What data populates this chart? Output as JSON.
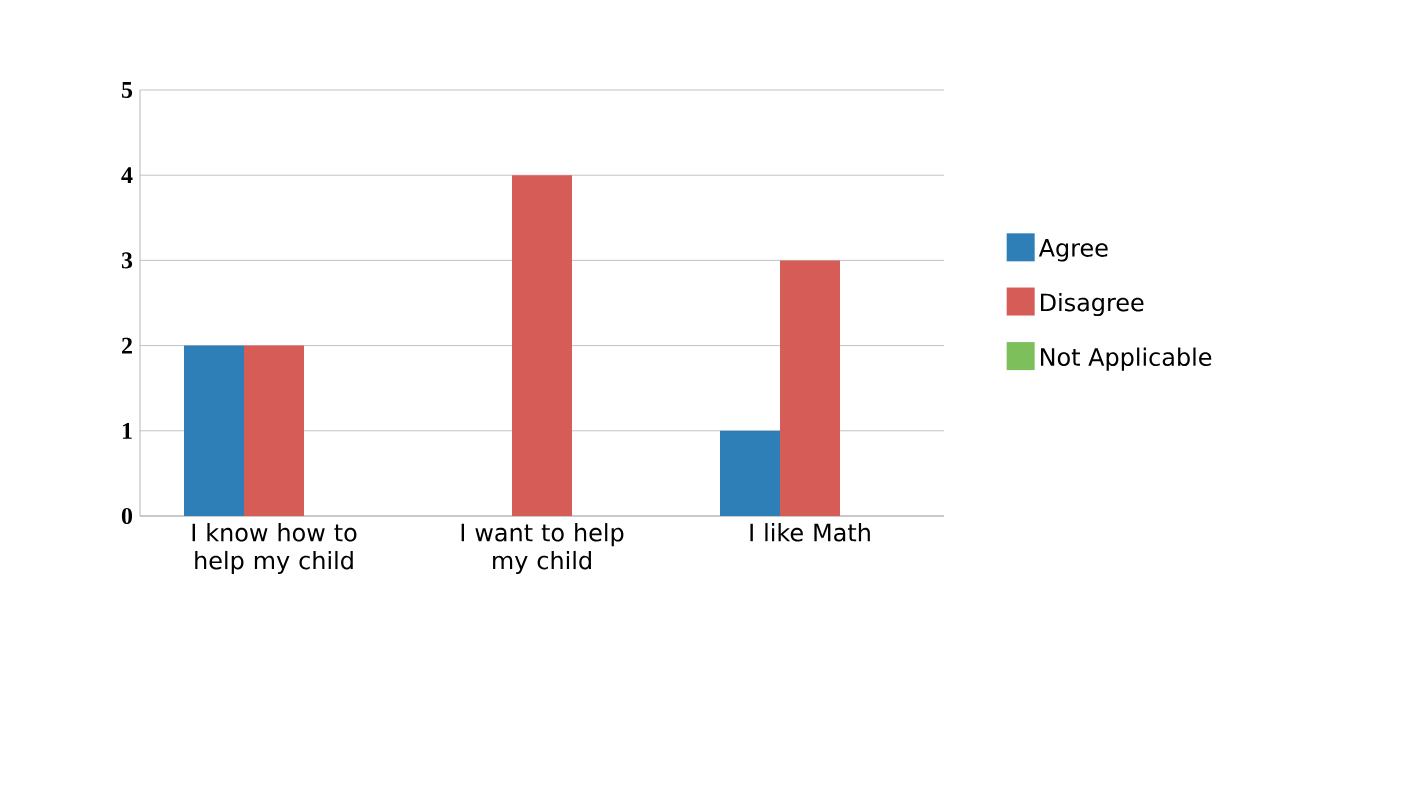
{
  "chart_data": {
    "type": "bar",
    "categories": [
      "I know how to help my child",
      "I want to help my child",
      "I like Math"
    ],
    "series": [
      {
        "name": "Agree",
        "color": "#2e7fb8",
        "values": [
          2,
          0,
          1
        ]
      },
      {
        "name": "Disagree",
        "color": "#d65c58",
        "values": [
          2,
          4,
          3
        ]
      },
      {
        "name": "Not Applicable",
        "color": "#7dbf5b",
        "values": [
          0,
          0,
          0
        ]
      }
    ],
    "ylim": [
      0,
      5
    ],
    "yticks": [
      0,
      1,
      2,
      3,
      4,
      5
    ],
    "grid": "y",
    "legend": "right"
  }
}
